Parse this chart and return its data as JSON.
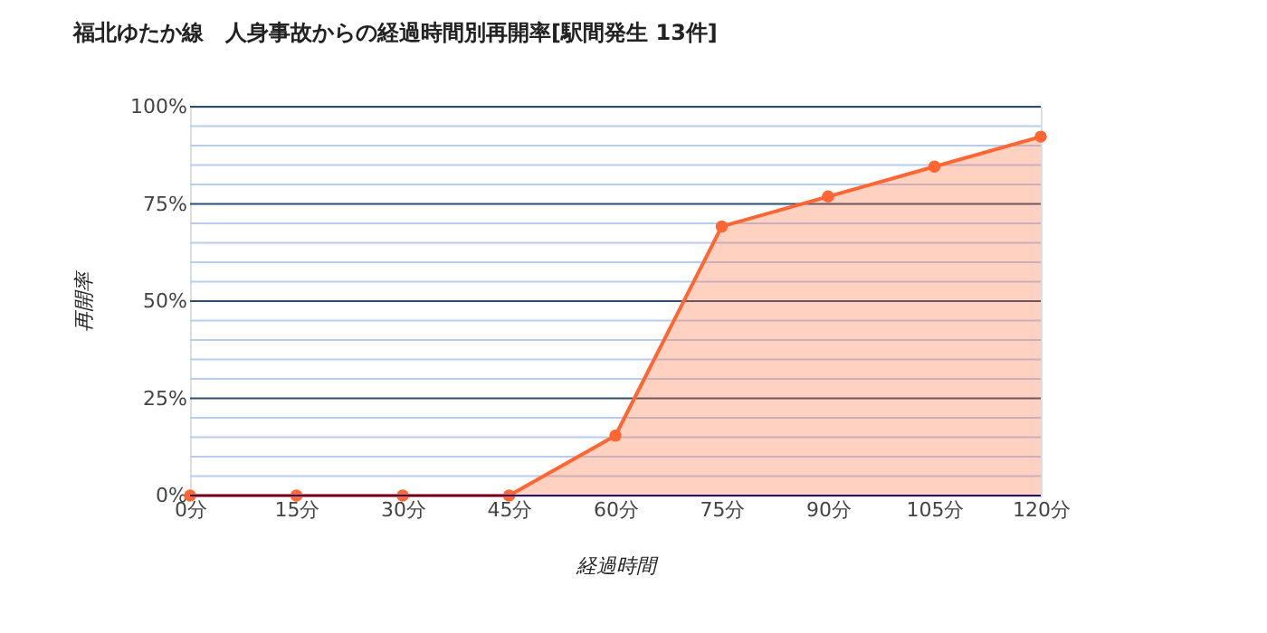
{
  "chart_data": {
    "type": "area",
    "title": "福北ゆたか線　人身事故からの経過時間別再開率[駅間発生 13件]",
    "xlabel": "経過時間",
    "ylabel": "再開率",
    "categories": [
      "0分",
      "15分",
      "30分",
      "45分",
      "60分",
      "75分",
      "90分",
      "105分",
      "120分"
    ],
    "series": [
      {
        "color": "#ff6633",
        "values": [
          0,
          0,
          0,
          0,
          15.4,
          69.2,
          76.9,
          84.6,
          92.3
        ]
      }
    ],
    "ylim": [
      0,
      100
    ],
    "yticks": [
      {
        "value": 0,
        "label": "0%"
      },
      {
        "value": 5,
        "label": null
      },
      {
        "value": 10,
        "label": null
      },
      {
        "value": 15,
        "label": null
      },
      {
        "value": 20,
        "label": null
      },
      {
        "value": 25,
        "label": "25%"
      },
      {
        "value": 30,
        "label": null
      },
      {
        "value": 35,
        "label": null
      },
      {
        "value": 40,
        "label": null
      },
      {
        "value": 45,
        "label": null
      },
      {
        "value": 50,
        "label": "50%"
      },
      {
        "value": 55,
        "label": null
      },
      {
        "value": 60,
        "label": null
      },
      {
        "value": 65,
        "label": null
      },
      {
        "value": 70,
        "label": null
      },
      {
        "value": 75,
        "label": "75%"
      },
      {
        "value": 80,
        "label": null
      },
      {
        "value": 85,
        "label": null
      },
      {
        "value": 90,
        "label": null
      },
      {
        "value": 95,
        "label": null
      },
      {
        "value": 100,
        "label": "100%"
      }
    ],
    "grid": "y",
    "marker": "circle",
    "line_style": "solid"
  }
}
